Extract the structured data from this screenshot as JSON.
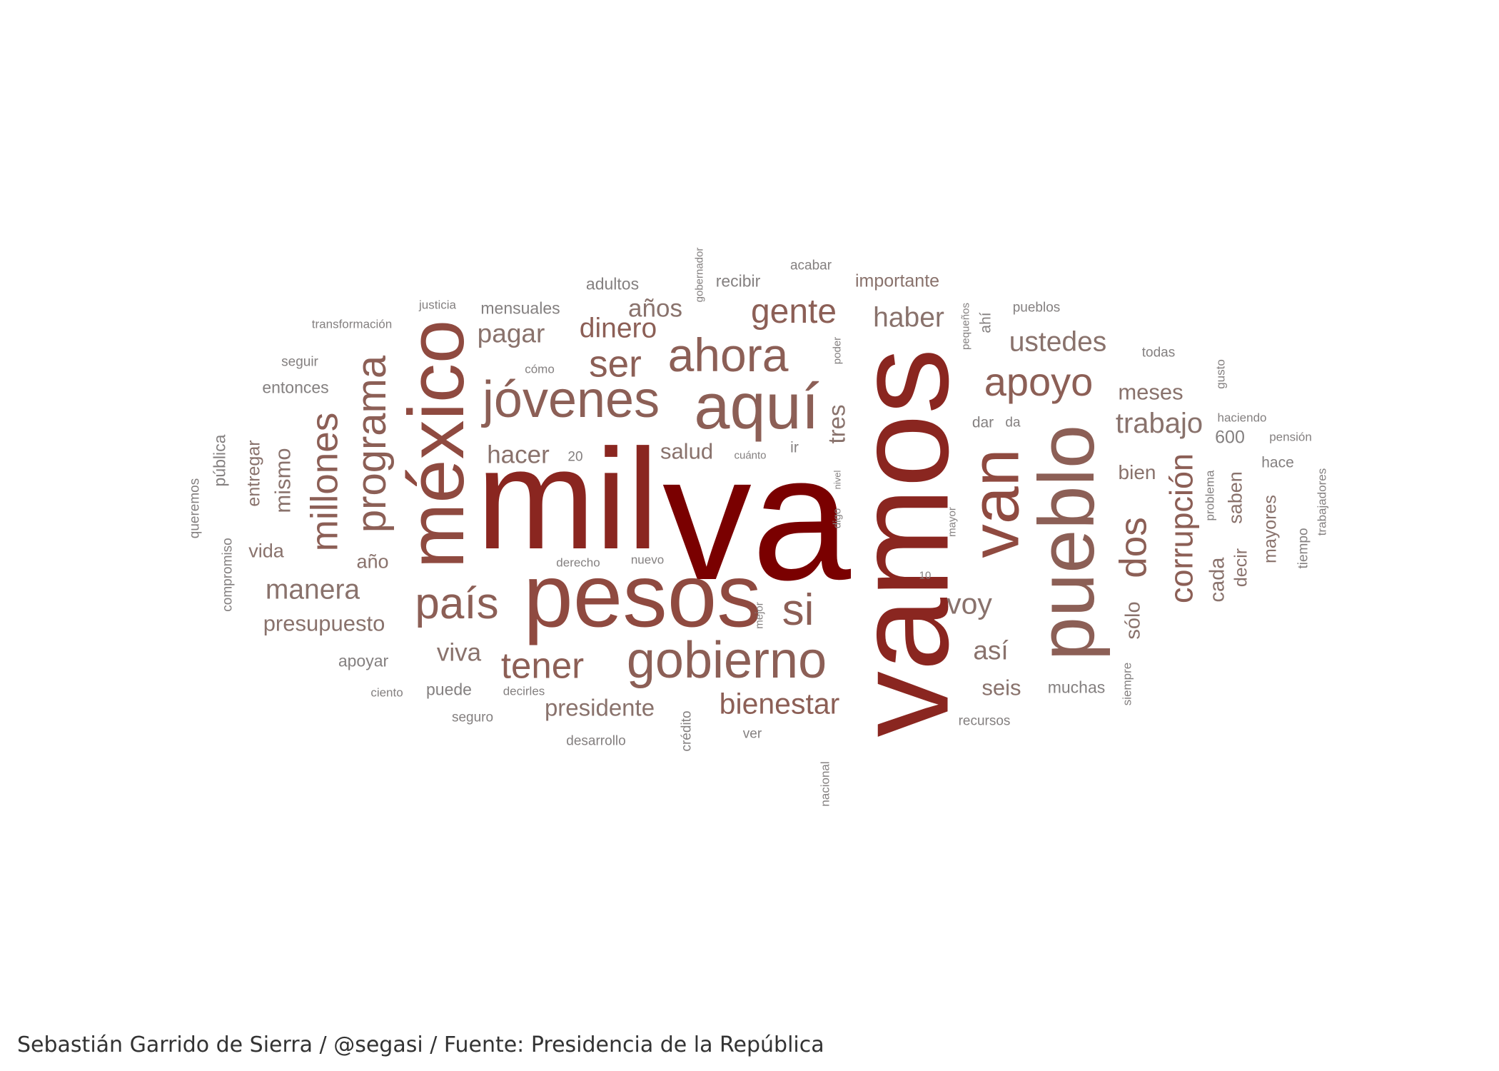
{
  "caption": "Sebastián Garrido de Sierra / @segasi / Fuente: Presidencia de la República",
  "palette": [
    "#7a0000",
    "#8a2620",
    "#8f4a40",
    "#8c5f56",
    "#89726c",
    "#848080"
  ],
  "words": [
    {
      "text": "va"
    },
    {
      "text": "mil"
    },
    {
      "text": "vamos"
    },
    {
      "text": "pesos"
    },
    {
      "text": "méxico"
    },
    {
      "text": "pueblo"
    },
    {
      "text": "van"
    },
    {
      "text": "aquí"
    },
    {
      "text": "jóvenes"
    },
    {
      "text": "gobierno"
    },
    {
      "text": "ahora"
    },
    {
      "text": "país"
    },
    {
      "text": "programa"
    },
    {
      "text": "si"
    },
    {
      "text": "millones"
    },
    {
      "text": "apoyo"
    },
    {
      "text": "tener"
    },
    {
      "text": "gente"
    },
    {
      "text": "ser"
    },
    {
      "text": "corrupción"
    },
    {
      "text": "dos"
    },
    {
      "text": "bienestar"
    },
    {
      "text": "dinero"
    },
    {
      "text": "manera"
    },
    {
      "text": "haber"
    },
    {
      "text": "voy"
    },
    {
      "text": "trabajo"
    },
    {
      "text": "ustedes"
    },
    {
      "text": "pagar"
    },
    {
      "text": "presupuesto"
    },
    {
      "text": "hacer"
    },
    {
      "text": "presidente"
    },
    {
      "text": "años"
    },
    {
      "text": "viva"
    },
    {
      "text": "salud"
    },
    {
      "text": "tres"
    },
    {
      "text": "así"
    },
    {
      "text": "mismo"
    },
    {
      "text": "meses"
    },
    {
      "text": "seis"
    },
    {
      "text": "sólo"
    },
    {
      "text": "cada"
    },
    {
      "text": "bien"
    },
    {
      "text": "mayores"
    },
    {
      "text": "saben"
    },
    {
      "text": "decir"
    },
    {
      "text": "entregar"
    },
    {
      "text": "vida"
    },
    {
      "text": "año"
    },
    {
      "text": "importante"
    },
    {
      "text": "adultos"
    },
    {
      "text": "mensuales"
    },
    {
      "text": "recibir"
    },
    {
      "text": "entonces"
    },
    {
      "text": "pública"
    },
    {
      "text": "puede"
    },
    {
      "text": "apoyar"
    },
    {
      "text": "muchas"
    },
    {
      "text": "600"
    },
    {
      "text": "hace"
    },
    {
      "text": "dar"
    },
    {
      "text": "ahí"
    },
    {
      "text": "acabar"
    },
    {
      "text": "justicia"
    },
    {
      "text": "transformación"
    },
    {
      "text": "seguir"
    },
    {
      "text": "cómo"
    },
    {
      "text": "pueblos"
    },
    {
      "text": "todas"
    },
    {
      "text": "haciendo"
    },
    {
      "text": "pensión"
    },
    {
      "text": "gusto"
    },
    {
      "text": "problema"
    },
    {
      "text": "trabajadores"
    },
    {
      "text": "tiempo"
    },
    {
      "text": "queremos"
    },
    {
      "text": "compromiso"
    },
    {
      "text": "ciento"
    },
    {
      "text": "seguro"
    },
    {
      "text": "desarrollo"
    },
    {
      "text": "decirles"
    },
    {
      "text": "derecho"
    },
    {
      "text": "nuevo"
    },
    {
      "text": "ver"
    },
    {
      "text": "crédito"
    },
    {
      "text": "nacional"
    },
    {
      "text": "mejor"
    },
    {
      "text": "recursos"
    },
    {
      "text": "siempre"
    },
    {
      "text": "mayor"
    },
    {
      "text": "10"
    },
    {
      "text": "20"
    },
    {
      "text": "cuánto"
    },
    {
      "text": "ir"
    },
    {
      "text": "da"
    },
    {
      "text": "nivel"
    },
    {
      "text": "digo"
    },
    {
      "text": "poder"
    },
    {
      "text": "gobernador"
    },
    {
      "text": "pequeños"
    }
  ]
}
